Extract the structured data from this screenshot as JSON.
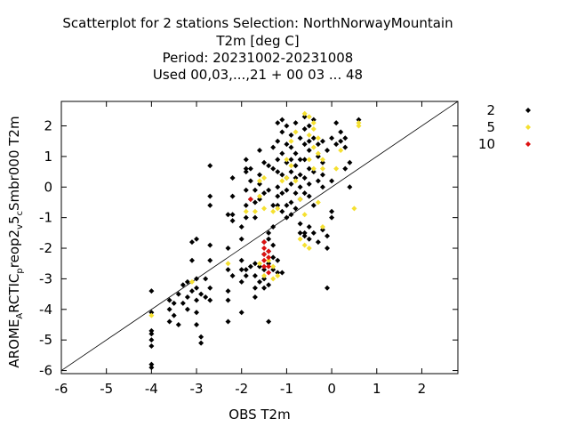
{
  "chart_data": {
    "type": "scatter",
    "title_lines": [
      "Scatterplot for    2 stations Selection: NorthNorwayMountain",
      "T2m [deg C]",
      "Period: 20231002-20231008",
      "Used  00,03,...,21  + 00 03 ... 48"
    ],
    "xlabel": "OBS T2m",
    "ylabel": "AROME_ARCTIC_prreop2_v5_cSmbr000 T2m",
    "ylabel_parts": [
      "AROME",
      "A",
      "RCTIC",
      "p",
      "reop2",
      "v",
      "5",
      "c",
      "Smbr000 T2m"
    ],
    "xlim": [
      -6,
      2.8
    ],
    "ylim": [
      -6.1,
      2.8
    ],
    "xticks": [
      -6,
      -5,
      -4,
      -3,
      -2,
      -1,
      0,
      1,
      2
    ],
    "yticks": [
      2,
      1,
      0,
      -1,
      -2,
      -3,
      -4,
      -5,
      -6
    ],
    "grid": false,
    "legend_position": "right",
    "diagonal_line": true,
    "series": [
      {
        "name": "2",
        "color": "#000000",
        "points": [
          [
            -4.0,
            -3.4
          ],
          [
            -4.0,
            -4.1
          ],
          [
            -4.0,
            -4.7
          ],
          [
            -4.0,
            -4.8
          ],
          [
            -4.0,
            -5.0
          ],
          [
            -4.0,
            -5.2
          ],
          [
            -4.0,
            -5.8
          ],
          [
            -4.0,
            -5.9
          ],
          [
            -3.6,
            -3.7
          ],
          [
            -3.6,
            -4.0
          ],
          [
            -3.6,
            -4.4
          ],
          [
            -3.5,
            -3.8
          ],
          [
            -3.5,
            -4.2
          ],
          [
            -3.4,
            -3.5
          ],
          [
            -3.4,
            -4.5
          ],
          [
            -3.3,
            -3.2
          ],
          [
            -3.3,
            -3.8
          ],
          [
            -3.2,
            -3.1
          ],
          [
            -3.2,
            -3.6
          ],
          [
            -3.2,
            -4.0
          ],
          [
            -3.1,
            -1.8
          ],
          [
            -3.1,
            -2.4
          ],
          [
            -3.1,
            -3.4
          ],
          [
            -3.0,
            -1.7
          ],
          [
            -3.0,
            -3.0
          ],
          [
            -3.0,
            -3.3
          ],
          [
            -3.0,
            -3.7
          ],
          [
            -3.0,
            -4.1
          ],
          [
            -3.0,
            -4.5
          ],
          [
            -2.9,
            -3.5
          ],
          [
            -2.9,
            -4.9
          ],
          [
            -2.9,
            -5.1
          ],
          [
            -2.8,
            -3.0
          ],
          [
            -2.8,
            -3.6
          ],
          [
            -2.7,
            0.7
          ],
          [
            -2.7,
            -0.3
          ],
          [
            -2.7,
            -0.6
          ],
          [
            -2.7,
            -1.9
          ],
          [
            -2.7,
            -2.4
          ],
          [
            -2.7,
            -3.3
          ],
          [
            -2.7,
            -3.7
          ],
          [
            -2.3,
            -0.9
          ],
          [
            -2.3,
            -2.0
          ],
          [
            -2.3,
            -2.7
          ],
          [
            -2.3,
            -3.4
          ],
          [
            -2.3,
            -3.7
          ],
          [
            -2.3,
            -4.4
          ],
          [
            -2.2,
            0.3
          ],
          [
            -2.2,
            -0.3
          ],
          [
            -2.2,
            -0.9
          ],
          [
            -2.2,
            -1.1
          ],
          [
            -2.2,
            -2.9
          ],
          [
            -2.0,
            -1.3
          ],
          [
            -2.0,
            -1.7
          ],
          [
            -2.0,
            -2.4
          ],
          [
            -2.0,
            -2.7
          ],
          [
            -2.0,
            -3.1
          ],
          [
            -2.0,
            -4.1
          ],
          [
            -1.9,
            0.9
          ],
          [
            -1.9,
            0.6
          ],
          [
            -1.9,
            0.5
          ],
          [
            -1.9,
            -0.1
          ],
          [
            -1.9,
            -0.6
          ],
          [
            -1.9,
            -1.0
          ],
          [
            -1.9,
            -2.7
          ],
          [
            -1.9,
            -2.9
          ],
          [
            -1.8,
            0.6
          ],
          [
            -1.8,
            0.2
          ],
          [
            -1.8,
            -0.4
          ],
          [
            -1.8,
            -2.6
          ],
          [
            -1.7,
            -0.1
          ],
          [
            -1.7,
            -0.5
          ],
          [
            -1.7,
            -1.0
          ],
          [
            -1.7,
            -2.5
          ],
          [
            -1.7,
            -2.9
          ],
          [
            -1.7,
            -3.3
          ],
          [
            -1.7,
            -3.6
          ],
          [
            -1.6,
            1.2
          ],
          [
            -1.6,
            0.4
          ],
          [
            -1.6,
            0.1
          ],
          [
            -1.6,
            -0.4
          ],
          [
            -1.6,
            -2.6
          ],
          [
            -1.6,
            -3.1
          ],
          [
            -1.5,
            0.8
          ],
          [
            -1.5,
            -0.2
          ],
          [
            -1.5,
            -1.8
          ],
          [
            -1.5,
            -2.2
          ],
          [
            -1.5,
            -2.7
          ],
          [
            -1.5,
            -3.0
          ],
          [
            -1.5,
            -3.3
          ],
          [
            -1.4,
            0.7
          ],
          [
            -1.4,
            -0.1
          ],
          [
            -1.4,
            -1.5
          ],
          [
            -1.4,
            -1.7
          ],
          [
            -1.4,
            -2.1
          ],
          [
            -1.4,
            -2.5
          ],
          [
            -1.4,
            -3.2
          ],
          [
            -1.4,
            -4.4
          ],
          [
            -1.3,
            1.3
          ],
          [
            -1.3,
            0.6
          ],
          [
            -1.3,
            -0.6
          ],
          [
            -1.3,
            -1.3
          ],
          [
            -1.3,
            -1.9
          ],
          [
            -1.3,
            -2.3
          ],
          [
            -1.3,
            -2.7
          ],
          [
            -1.2,
            2.1
          ],
          [
            -1.2,
            1.5
          ],
          [
            -1.2,
            0.9
          ],
          [
            -1.2,
            0.5
          ],
          [
            -1.2,
            0.0
          ],
          [
            -1.2,
            -0.3
          ],
          [
            -1.2,
            -0.6
          ],
          [
            -1.2,
            -2.4
          ],
          [
            -1.2,
            -2.8
          ],
          [
            -1.1,
            2.2
          ],
          [
            -1.1,
            1.8
          ],
          [
            -1.1,
            1.1
          ],
          [
            -1.1,
            0.4
          ],
          [
            -1.1,
            -0.2
          ],
          [
            -1.1,
            -0.8
          ],
          [
            -1.1,
            -2.8
          ],
          [
            -1.0,
            2.0
          ],
          [
            -1.0,
            1.4
          ],
          [
            -1.0,
            0.8
          ],
          [
            -1.0,
            0.3
          ],
          [
            -1.0,
            -0.1
          ],
          [
            -1.0,
            -0.6
          ],
          [
            -1.0,
            -1.0
          ],
          [
            -0.9,
            1.7
          ],
          [
            -0.9,
            1.3
          ],
          [
            -0.9,
            0.9
          ],
          [
            -0.9,
            0.5
          ],
          [
            -0.9,
            0.1
          ],
          [
            -0.9,
            -0.5
          ],
          [
            -0.9,
            -0.9
          ],
          [
            -0.8,
            2.1
          ],
          [
            -0.8,
            1.1
          ],
          [
            -0.8,
            0.7
          ],
          [
            -0.8,
            0.3
          ],
          [
            -0.8,
            -0.2
          ],
          [
            -0.8,
            -0.7
          ],
          [
            -0.7,
            1.6
          ],
          [
            -0.7,
            0.9
          ],
          [
            -0.7,
            0.4
          ],
          [
            -0.7,
            0.0
          ],
          [
            -0.7,
            -0.4
          ],
          [
            -0.7,
            -1.2
          ],
          [
            -0.7,
            -1.5
          ],
          [
            -0.6,
            2.3
          ],
          [
            -0.6,
            1.9
          ],
          [
            -0.6,
            1.4
          ],
          [
            -0.6,
            0.9
          ],
          [
            -0.6,
            0.3
          ],
          [
            -0.6,
            -0.2
          ],
          [
            -0.6,
            -1.5
          ],
          [
            -0.6,
            -1.6
          ],
          [
            -0.5,
            2.0
          ],
          [
            -0.5,
            1.5
          ],
          [
            -0.5,
            1.2
          ],
          [
            -0.5,
            0.6
          ],
          [
            -0.5,
            0.1
          ],
          [
            -0.5,
            -0.3
          ],
          [
            -0.5,
            -1.3
          ],
          [
            -0.5,
            -1.7
          ],
          [
            -0.4,
            2.2
          ],
          [
            -0.4,
            1.6
          ],
          [
            -0.4,
            0.5
          ],
          [
            -0.4,
            -0.6
          ],
          [
            -0.4,
            -1.5
          ],
          [
            -0.3,
            1.4
          ],
          [
            -0.3,
            1.0
          ],
          [
            -0.3,
            0.2
          ],
          [
            -0.3,
            -1.8
          ],
          [
            -0.2,
            1.5
          ],
          [
            -0.2,
            0.8
          ],
          [
            -0.2,
            0.4
          ],
          [
            -0.2,
            0.0
          ],
          [
            -0.2,
            -1.4
          ],
          [
            -0.1,
            1.2
          ],
          [
            -0.1,
            -1.6
          ],
          [
            -0.1,
            -2.0
          ],
          [
            -0.1,
            -3.3
          ],
          [
            0.0,
            1.6
          ],
          [
            0.0,
            0.2
          ],
          [
            0.0,
            -0.8
          ],
          [
            0.0,
            -1.0
          ],
          [
            0.1,
            2.1
          ],
          [
            0.1,
            1.4
          ],
          [
            0.2,
            1.8
          ],
          [
            0.2,
            1.5
          ],
          [
            0.3,
            1.6
          ],
          [
            0.3,
            1.3
          ],
          [
            0.3,
            0.6
          ],
          [
            0.4,
            0.0
          ],
          [
            0.4,
            0.8
          ],
          [
            0.6,
            2.2
          ]
        ]
      },
      {
        "name": "5",
        "color": "#f5e030",
        "points": [
          [
            -4.0,
            -4.2
          ],
          [
            -3.1,
            -3.1
          ],
          [
            -2.3,
            -2.5
          ],
          [
            -1.9,
            -0.8
          ],
          [
            -1.7,
            -0.8
          ],
          [
            -1.6,
            -0.3
          ],
          [
            -1.6,
            0.2
          ],
          [
            -1.5,
            -0.7
          ],
          [
            -1.5,
            0.3
          ],
          [
            -1.6,
            -2.5
          ],
          [
            -1.5,
            -2.9
          ],
          [
            -1.4,
            -2.4
          ],
          [
            -1.3,
            -2.6
          ],
          [
            -1.2,
            -2.9
          ],
          [
            -1.3,
            -3.0
          ],
          [
            -1.3,
            -0.8
          ],
          [
            -1.2,
            -0.7
          ],
          [
            -1.1,
            0.2
          ],
          [
            -1.0,
            0.9
          ],
          [
            -1.0,
            0.3
          ],
          [
            -0.9,
            1.5
          ],
          [
            -0.9,
            0.7
          ],
          [
            -0.8,
            1.8
          ],
          [
            -0.8,
            0.2
          ],
          [
            -0.7,
            -0.4
          ],
          [
            -0.6,
            -0.9
          ],
          [
            -0.7,
            -1.7
          ],
          [
            -0.6,
            -1.9
          ],
          [
            -0.5,
            -2.0
          ],
          [
            -0.6,
            2.4
          ],
          [
            -0.5,
            2.3
          ],
          [
            -0.4,
            2.1
          ],
          [
            -0.4,
            1.9
          ],
          [
            -0.5,
            1.7
          ],
          [
            -0.4,
            1.3
          ],
          [
            -0.5,
            0.9
          ],
          [
            -0.4,
            0.6
          ],
          [
            -0.3,
            1.6
          ],
          [
            -0.3,
            1.1
          ],
          [
            -0.2,
            0.9
          ],
          [
            -0.2,
            0.6
          ],
          [
            -0.3,
            -0.5
          ],
          [
            -0.2,
            -1.3
          ],
          [
            0.1,
            0.6
          ],
          [
            0.2,
            1.2
          ],
          [
            0.5,
            -0.7
          ],
          [
            0.6,
            2.1
          ],
          [
            0.6,
            2.0
          ]
        ]
      },
      {
        "name": "10",
        "color": "#dd1111",
        "points": [
          [
            -1.8,
            -0.4
          ],
          [
            -1.5,
            -1.8
          ],
          [
            -1.5,
            -2.0
          ],
          [
            -1.5,
            -2.2
          ],
          [
            -1.5,
            -2.4
          ],
          [
            -1.4,
            -2.1
          ],
          [
            -1.4,
            -2.3
          ],
          [
            -1.4,
            -2.6
          ],
          [
            -1.4,
            -2.8
          ],
          [
            -1.5,
            -2.6
          ]
        ]
      }
    ]
  }
}
